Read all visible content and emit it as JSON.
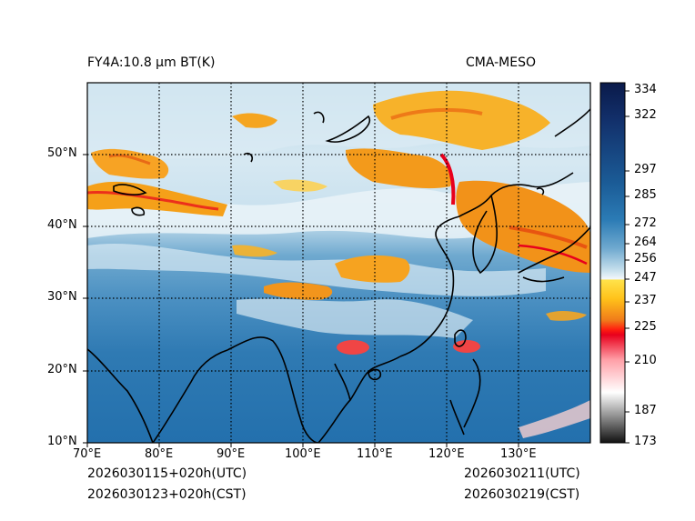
{
  "header": {
    "left_title": "FY4A:10.8 µm BT(K)",
    "right_title": "CMA-MESO"
  },
  "map": {
    "lon_range": [
      70,
      140
    ],
    "lat_range": [
      10,
      60
    ],
    "lon_ticks": [
      "70°E",
      "80°E",
      "90°E",
      "100°E",
      "110°E",
      "120°E",
      "130°E"
    ],
    "lat_ticks": [
      "10°N",
      "20°N",
      "30°N",
      "40°N",
      "50°N"
    ],
    "gridlines": "dotted"
  },
  "colorbar": {
    "range": [
      173,
      340
    ],
    "ticks": [
      "334",
      "322",
      "297",
      "285",
      "272",
      "264",
      "256",
      "247",
      "237",
      "225",
      "210",
      "187",
      "173"
    ],
    "colors": {
      "warm_dark": "#0a1a4a",
      "warm_blue": "#2b7bb5",
      "cool_white": "#f2f7fb",
      "cold_yellow": "#ffd21e",
      "cold_orange": "#f07a1a",
      "cold_red": "#e8001c",
      "coldest_gray": "#1a1a1a"
    }
  },
  "footer": {
    "init_utc": "2026030115+020h(UTC)",
    "init_cst": "2026030123+020h(CST)",
    "valid_utc": "2026030211(UTC)",
    "valid_cst": "2026030219(CST)"
  }
}
